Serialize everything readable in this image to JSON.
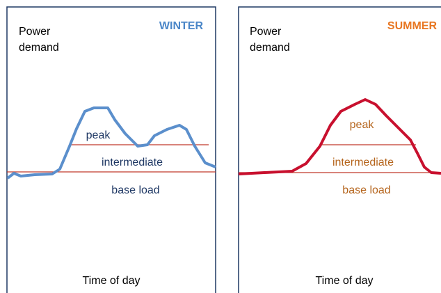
{
  "panels": [
    {
      "season": "WINTER",
      "y_label": [
        "Power",
        "demand"
      ],
      "x_label": "Time of day",
      "bands": [
        "peak",
        "intermediate",
        "base load"
      ]
    },
    {
      "season": "SUMMER",
      "y_label": [
        "Power",
        "demand"
      ],
      "x_label": "Time of day",
      "bands": [
        "peak",
        "intermediate",
        "base load"
      ]
    }
  ]
}
